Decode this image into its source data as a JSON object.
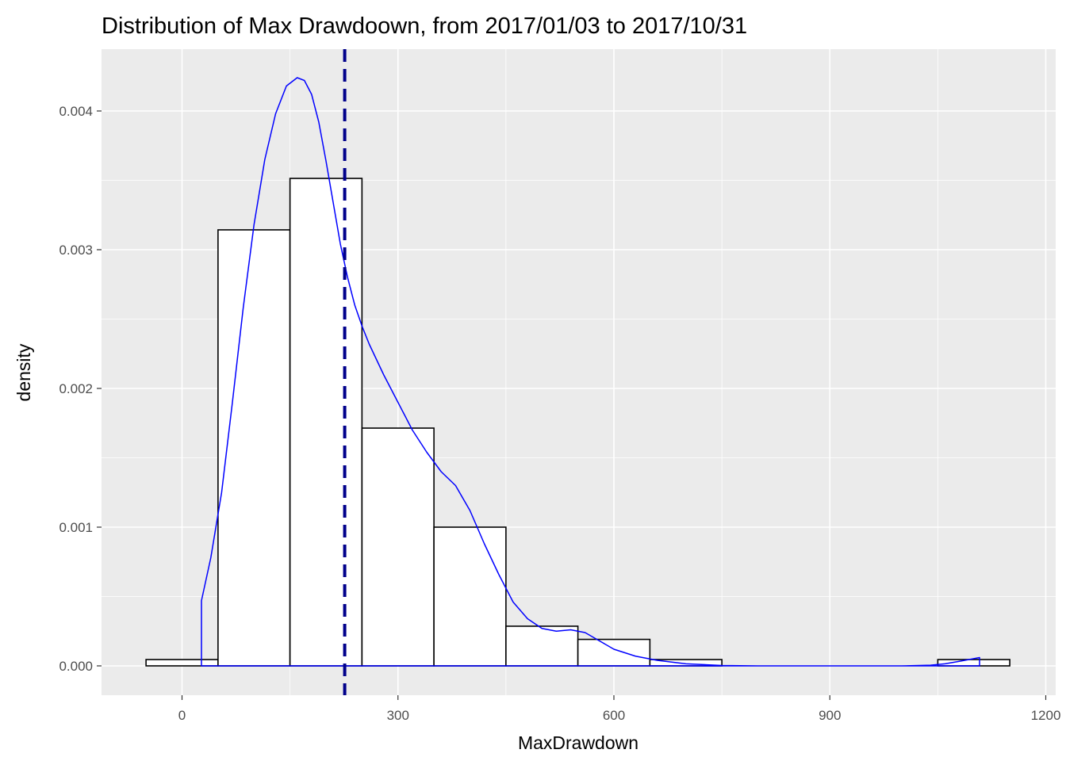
{
  "chart_data": {
    "type": "histogram",
    "title": "Distribution of Max Drawdoown, from 2017/01/03 to 2017/10/31",
    "xlabel": "MaxDrawdown",
    "ylabel": "density",
    "xlim": [
      -50,
      1150
    ],
    "ylim": [
      0,
      0.0043
    ],
    "x_ticks": [
      0,
      300,
      600,
      900,
      1200
    ],
    "x_tick_labels": [
      "0",
      "300",
      "600",
      "900",
      "1200"
    ],
    "y_ticks": [
      0,
      0.001,
      0.002,
      0.003,
      0.004
    ],
    "y_tick_labels": [
      "0.000",
      "0.001",
      "0.002",
      "0.003",
      "0.004"
    ],
    "bins": [
      {
        "x0": -50,
        "x1": 50,
        "density": 4.57e-05
      },
      {
        "x0": 50,
        "x1": 150,
        "density": 0.003143
      },
      {
        "x0": 150,
        "x1": 250,
        "density": 0.003514
      },
      {
        "x0": 250,
        "x1": 350,
        "density": 0.001714
      },
      {
        "x0": 350,
        "x1": 450,
        "density": 0.001
      },
      {
        "x0": 450,
        "x1": 550,
        "density": 0.000286
      },
      {
        "x0": 550,
        "x1": 650,
        "density": 0.000191
      },
      {
        "x0": 650,
        "x1": 750,
        "density": 4.57e-05
      },
      {
        "x0": 1050,
        "x1": 1150,
        "density": 4.57e-05
      }
    ],
    "density_curve": {
      "color": "#0000ff",
      "x": [
        27,
        27,
        40,
        55,
        70,
        85,
        100,
        115,
        130,
        145,
        160,
        170,
        180,
        190,
        200,
        210,
        220,
        230,
        240,
        250,
        260,
        280,
        300,
        320,
        340,
        360,
        380,
        400,
        420,
        440,
        460,
        480,
        500,
        520,
        540,
        560,
        580,
        600,
        630,
        660,
        700,
        750,
        800,
        900,
        1000,
        1040,
        1060,
        1080,
        1100,
        1108,
        1108
      ],
      "y": [
        0,
        0.00047,
        0.00078,
        0.00125,
        0.0019,
        0.00258,
        0.00318,
        0.00365,
        0.00398,
        0.00418,
        0.00424,
        0.00422,
        0.00412,
        0.00392,
        0.00364,
        0.00334,
        0.00304,
        0.0028,
        0.0026,
        0.00245,
        0.00232,
        0.0021,
        0.0019,
        0.0017,
        0.00154,
        0.0014,
        0.0013,
        0.00112,
        0.00088,
        0.00066,
        0.00046,
        0.00034,
        0.00027,
        0.00025,
        0.00026,
        0.00024,
        0.00018,
        0.00012,
        7e-05,
        4e-05,
        1.5e-05,
        3e-06,
        0,
        0,
        0,
        5e-06,
        1.5e-05,
        3.3e-05,
        5.2e-05,
        6e-05,
        0
      ]
    },
    "mean_line": {
      "x": 226,
      "color": "#00008b",
      "style": "dashed"
    },
    "bar_fill": "#ffffff",
    "bar_stroke": "#000000",
    "panel_background": "#ebebeb",
    "grid": true
  }
}
